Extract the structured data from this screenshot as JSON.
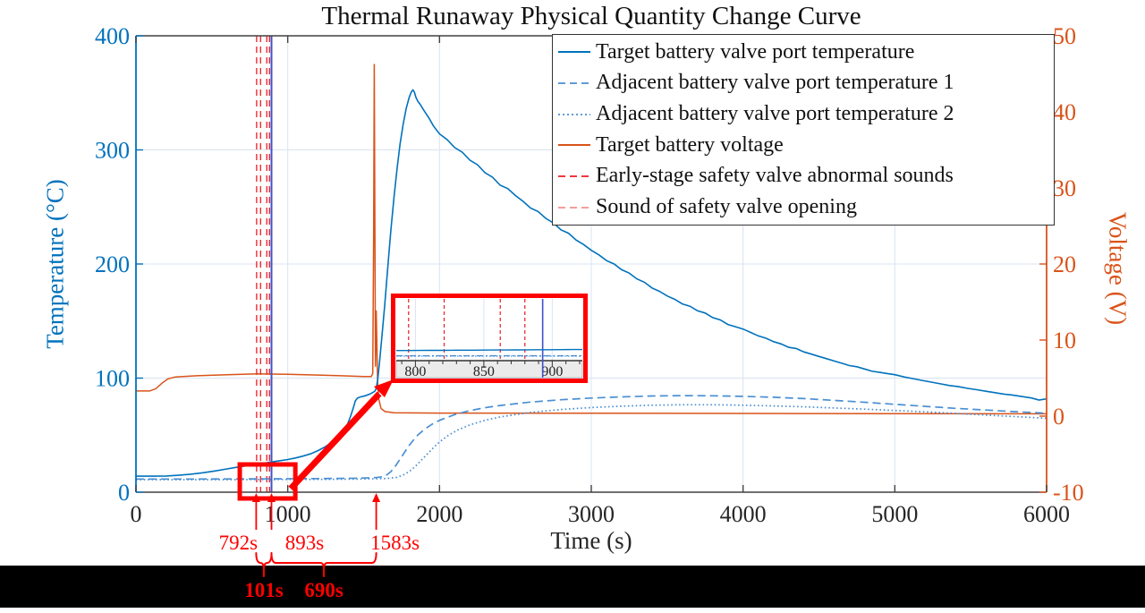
{
  "title": "Thermal Runaway Physical Quantity Change Curve",
  "axes": {
    "x": {
      "label": "Time (s)",
      "ticks": [
        0,
        1000,
        2000,
        3000,
        4000,
        5000,
        6000
      ],
      "lim": [
        0,
        6000
      ]
    },
    "y_left": {
      "label": "Temperature (°C)",
      "ticks": [
        0,
        100,
        200,
        300,
        400
      ],
      "lim": [
        0,
        400
      ],
      "color": "#0072BD"
    },
    "y_right": {
      "label": "Voltage (V)",
      "ticks": [
        -10,
        0,
        10,
        20,
        30,
        40,
        50
      ],
      "lim": [
        -10,
        50
      ],
      "color": "#D95319"
    }
  },
  "legend": {
    "items": [
      {
        "label": "Target battery valve port temperature",
        "color": "#0072BD",
        "dash": "solid"
      },
      {
        "label": "Adjacent battery valve port temperature 1",
        "color": "#4a8fd3",
        "dash": "dashed"
      },
      {
        "label": "Adjacent battery valve port temperature 2",
        "color": "#4a8fd3",
        "dash": "dotted"
      },
      {
        "label": "Target battery voltage",
        "color": "#D95319",
        "dash": "solid"
      },
      {
        "label": "Early-stage safety valve abnormal sounds",
        "color": "#ED1C24",
        "dash": "dashed"
      },
      {
        "label": "Sound of safety valve opening",
        "color": "#F2918C",
        "dash": "dashed"
      }
    ]
  },
  "chart_data": {
    "type": "line",
    "title": "Thermal Runaway Physical Quantity Change Curve",
    "xlabel": "Time (s)",
    "ylabel_left": "Temperature (°C)",
    "ylabel_right": "Voltage (V)",
    "xlim": [
      0,
      6000
    ],
    "ylim_left": [
      0,
      400
    ],
    "ylim_right": [
      -10,
      50
    ],
    "grid": true,
    "series": [
      {
        "name": "Target battery valve port temperature",
        "axis": "left",
        "color": "#0072BD",
        "style": "solid",
        "points": [
          [
            0,
            14
          ],
          [
            120,
            14
          ],
          [
            200,
            14.2
          ],
          [
            280,
            14.8
          ],
          [
            360,
            15.8
          ],
          [
            440,
            17
          ],
          [
            520,
            18.6
          ],
          [
            600,
            20.4
          ],
          [
            680,
            22.2
          ],
          [
            740,
            23.4
          ],
          [
            800,
            24.8
          ],
          [
            850,
            25.6
          ],
          [
            893,
            26.5
          ],
          [
            950,
            27.6
          ],
          [
            1000,
            28.6
          ],
          [
            1050,
            30
          ],
          [
            1100,
            31.6
          ],
          [
            1150,
            33.6
          ],
          [
            1200,
            36.5
          ],
          [
            1250,
            40
          ],
          [
            1300,
            45
          ],
          [
            1340,
            50
          ],
          [
            1370,
            55
          ],
          [
            1395,
            60
          ],
          [
            1415,
            67
          ],
          [
            1432,
            74
          ],
          [
            1445,
            80
          ],
          [
            1460,
            82.5
          ],
          [
            1480,
            83.5
          ],
          [
            1510,
            84.5
          ],
          [
            1540,
            86
          ],
          [
            1562,
            87.5
          ],
          [
            1575,
            88.6
          ],
          [
            1583,
            91
          ],
          [
            1593,
            99
          ],
          [
            1605,
            114
          ],
          [
            1620,
            136
          ],
          [
            1640,
            166
          ],
          [
            1660,
            198
          ],
          [
            1680,
            230
          ],
          [
            1700,
            258
          ],
          [
            1720,
            283
          ],
          [
            1740,
            305
          ],
          [
            1760,
            322
          ],
          [
            1780,
            336
          ],
          [
            1800,
            346
          ],
          [
            1815,
            351
          ],
          [
            1825,
            352.5
          ],
          [
            1835,
            350.5
          ],
          [
            1845,
            346
          ],
          [
            1858,
            342.5
          ],
          [
            1872,
            340
          ],
          [
            1886,
            337
          ],
          [
            1900,
            334
          ],
          [
            1930,
            328
          ],
          [
            1960,
            321
          ],
          [
            2000,
            314
          ],
          [
            2050,
            309
          ],
          [
            2100,
            302
          ],
          [
            2150,
            298
          ],
          [
            2200,
            291
          ],
          [
            2250,
            287
          ],
          [
            2300,
            280
          ],
          [
            2350,
            276
          ],
          [
            2400,
            269
          ],
          [
            2450,
            266
          ],
          [
            2500,
            260
          ],
          [
            2550,
            255
          ],
          [
            2600,
            249
          ],
          [
            2650,
            246
          ],
          [
            2700,
            240
          ],
          [
            2750,
            236
          ],
          [
            2800,
            230
          ],
          [
            2850,
            227
          ],
          [
            2900,
            221
          ],
          [
            2950,
            217
          ],
          [
            3000,
            212
          ],
          [
            3050,
            208
          ],
          [
            3100,
            203
          ],
          [
            3150,
            200
          ],
          [
            3200,
            195
          ],
          [
            3250,
            192
          ],
          [
            3300,
            187
          ],
          [
            3350,
            184
          ],
          [
            3400,
            179
          ],
          [
            3450,
            176
          ],
          [
            3500,
            172
          ],
          [
            3550,
            169
          ],
          [
            3600,
            165
          ],
          [
            3650,
            163
          ],
          [
            3700,
            159
          ],
          [
            3750,
            157
          ],
          [
            3800,
            153
          ],
          [
            3850,
            151
          ],
          [
            3900,
            147
          ],
          [
            3950,
            145
          ],
          [
            4000,
            143
          ],
          [
            4050,
            140
          ],
          [
            4100,
            137
          ],
          [
            4150,
            135
          ],
          [
            4200,
            132
          ],
          [
            4250,
            130
          ],
          [
            4300,
            127
          ],
          [
            4350,
            126
          ],
          [
            4400,
            123
          ],
          [
            4450,
            121
          ],
          [
            4500,
            119
          ],
          [
            4550,
            117
          ],
          [
            4600,
            115
          ],
          [
            4650,
            113
          ],
          [
            4700,
            111
          ],
          [
            4750,
            110
          ],
          [
            4800,
            108
          ],
          [
            4850,
            106
          ],
          [
            4900,
            105
          ],
          [
            4950,
            104
          ],
          [
            5000,
            103
          ],
          [
            5060,
            101
          ],
          [
            5120,
            99.5
          ],
          [
            5180,
            98
          ],
          [
            5240,
            96.5
          ],
          [
            5300,
            95
          ],
          [
            5360,
            93.5
          ],
          [
            5420,
            92.5
          ],
          [
            5480,
            91
          ],
          [
            5540,
            89.8
          ],
          [
            5600,
            88.5
          ],
          [
            5660,
            87.2
          ],
          [
            5720,
            86
          ],
          [
            5780,
            85
          ],
          [
            5840,
            83.8
          ],
          [
            5900,
            82.6
          ],
          [
            5950,
            80.8
          ],
          [
            6000,
            81.8
          ]
        ]
      },
      {
        "name": "Adjacent battery valve port temperature 1",
        "axis": "left",
        "color": "#4a8fd3",
        "style": "dashed",
        "points": [
          [
            0,
            11.5
          ],
          [
            400,
            11.5
          ],
          [
            800,
            11.7
          ],
          [
            1200,
            11.9
          ],
          [
            1450,
            12.2
          ],
          [
            1580,
            12.8
          ],
          [
            1620,
            13.5
          ],
          [
            1650,
            15
          ],
          [
            1680,
            18
          ],
          [
            1710,
            23
          ],
          [
            1740,
            29
          ],
          [
            1770,
            35
          ],
          [
            1800,
            41
          ],
          [
            1830,
            46
          ],
          [
            1860,
            50.5
          ],
          [
            1900,
            55
          ],
          [
            1950,
            59.5
          ],
          [
            2000,
            63
          ],
          [
            2100,
            68
          ],
          [
            2200,
            71.5
          ],
          [
            2300,
            74
          ],
          [
            2400,
            76
          ],
          [
            2600,
            79
          ],
          [
            2800,
            81
          ],
          [
            3000,
            82.5
          ],
          [
            3200,
            83.5
          ],
          [
            3400,
            84.3
          ],
          [
            3600,
            84.6
          ],
          [
            3800,
            84.5
          ],
          [
            4000,
            84
          ],
          [
            4200,
            83.2
          ],
          [
            4400,
            82
          ],
          [
            4600,
            80.5
          ],
          [
            4800,
            78.8
          ],
          [
            5000,
            77
          ],
          [
            5200,
            75.2
          ],
          [
            5400,
            73.5
          ],
          [
            5600,
            72
          ],
          [
            5800,
            70.5
          ],
          [
            6000,
            69.2
          ]
        ]
      },
      {
        "name": "Adjacent battery valve port temperature 2",
        "axis": "left",
        "color": "#4a8fd3",
        "style": "dotted",
        "points": [
          [
            0,
            11
          ],
          [
            600,
            11
          ],
          [
            1200,
            11.2
          ],
          [
            1500,
            11.5
          ],
          [
            1650,
            12
          ],
          [
            1720,
            13
          ],
          [
            1760,
            15
          ],
          [
            1800,
            18
          ],
          [
            1840,
            22.5
          ],
          [
            1880,
            28
          ],
          [
            1920,
            33.5
          ],
          [
            1960,
            39
          ],
          [
            2000,
            44
          ],
          [
            2060,
            50
          ],
          [
            2120,
            54.5
          ],
          [
            2200,
            59
          ],
          [
            2300,
            63
          ],
          [
            2400,
            66
          ],
          [
            2600,
            70
          ],
          [
            2800,
            72.5
          ],
          [
            3000,
            74.2
          ],
          [
            3200,
            75.4
          ],
          [
            3400,
            76.2
          ],
          [
            3600,
            76.6
          ],
          [
            3800,
            76.6
          ],
          [
            4000,
            76.2
          ],
          [
            4200,
            75.6
          ],
          [
            4400,
            74.8
          ],
          [
            4600,
            73.8
          ],
          [
            4800,
            72.8
          ],
          [
            5000,
            71.6
          ],
          [
            5200,
            70.4
          ],
          [
            5400,
            69
          ],
          [
            5600,
            67.6
          ],
          [
            5800,
            66.2
          ],
          [
            6000,
            64.8
          ]
        ]
      },
      {
        "name": "Target battery voltage",
        "axis": "right",
        "color": "#D95319",
        "style": "solid",
        "points": [
          [
            0,
            3.3
          ],
          [
            90,
            3.3
          ],
          [
            130,
            3.6
          ],
          [
            170,
            4.3
          ],
          [
            210,
            4.9
          ],
          [
            260,
            5.15
          ],
          [
            400,
            5.3
          ],
          [
            600,
            5.45
          ],
          [
            800,
            5.55
          ],
          [
            1000,
            5.5
          ],
          [
            1200,
            5.4
          ],
          [
            1350,
            5.3
          ],
          [
            1500,
            5.2
          ],
          [
            1550,
            5.2
          ],
          [
            1560,
            5.6
          ],
          [
            1566,
            24
          ],
          [
            1570,
            46.3
          ],
          [
            1574,
            25
          ],
          [
            1578,
            6.5
          ],
          [
            1583,
            13.9
          ],
          [
            1588,
            9
          ],
          [
            1592,
            4.5
          ],
          [
            1600,
            2.2
          ],
          [
            1615,
            1
          ],
          [
            1640,
            0.6
          ],
          [
            1700,
            0.45
          ],
          [
            2000,
            0.4
          ],
          [
            3000,
            0.38
          ],
          [
            4000,
            0.35
          ],
          [
            5000,
            0.32
          ],
          [
            6000,
            0.3
          ]
        ]
      }
    ],
    "event_lines": {
      "early_sounds": {
        "label": "Early-stage safety valve abnormal sounds",
        "times": [
          795,
          821,
          862,
          880
        ],
        "color": "#ED1C24",
        "style": "dashed"
      },
      "valve_open": {
        "label": "Sound of safety valve opening",
        "time": 893,
        "color": "#4050C8",
        "style": "solid"
      }
    },
    "annotations": {
      "time_markers": [
        {
          "label": "792s",
          "t": 792
        },
        {
          "label": "893s",
          "t": 893
        },
        {
          "label": "1583s",
          "t": 1583
        }
      ],
      "intervals": [
        {
          "label": "101s",
          "from": 792,
          "to": 893
        },
        {
          "label": "690s",
          "from": 893,
          "to": 1583
        }
      ]
    },
    "inset": {
      "xlim": [
        786,
        922
      ],
      "x_ticks": [
        800,
        850,
        900
      ],
      "minor_tick_step": 10,
      "ylim": [
        0,
        150
      ]
    },
    "zoom_rect": {
      "t_range": [
        684,
        1050
      ],
      "temp_range": [
        -5.5,
        24.3
      ]
    }
  },
  "colors": {
    "temp_axis": "#0072BD",
    "volt_axis": "#D95319",
    "annotation_red": "#FF0000",
    "early_sound_red": "#ED1C24",
    "valve_open_salmon": "#F2918C",
    "valve_open_plot_line": "#4050C8",
    "grid": "#d9e4f1",
    "spine_dark": "#404040",
    "black_bar": "#000000"
  }
}
